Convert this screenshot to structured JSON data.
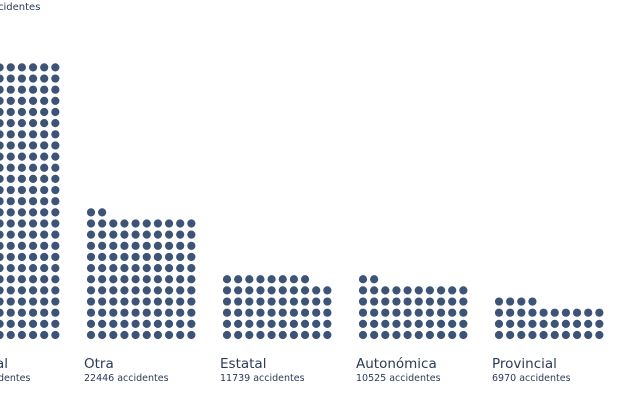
{
  "subtitle": "cidentes",
  "chart_data": {
    "type": "waffle-bar",
    "title": "",
    "units_per_dot": 200,
    "dots_per_row": 10,
    "dot_color": "#3d5478",
    "text_color": "#2b3b57",
    "categories": [
      {
        "label": "al",
        "count_label": "dentes",
        "dots": 250
      },
      {
        "label": "Otra",
        "count_label": "22446 accidentes",
        "value": 22446,
        "dots": 112
      },
      {
        "label": "Estatal",
        "count_label": "11739 accidentes",
        "value": 11739,
        "dots": 58
      },
      {
        "label": "Autonómica",
        "count_label": "10525 accidentes",
        "value": 10525,
        "dots": 52
      },
      {
        "label": "Provincial",
        "count_label": "6970 accidentes",
        "value": 6970,
        "dots": 34
      }
    ]
  }
}
